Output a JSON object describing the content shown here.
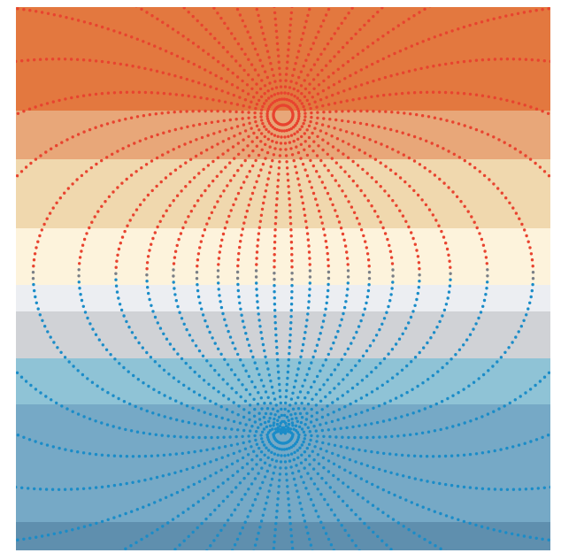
{
  "background": {
    "bands": [
      "#e3783f",
      "#e8a779",
      "#f0d8ae",
      "#fdf3dc",
      "#eceef2",
      "#d0d2d6",
      "#8fc3d6",
      "#76a9c6",
      "#5f8fae"
    ]
  },
  "field": {
    "positive_color": "#e8432f",
    "negative_color": "#1a8cc8",
    "neutral_color": "#7a7f86"
  }
}
